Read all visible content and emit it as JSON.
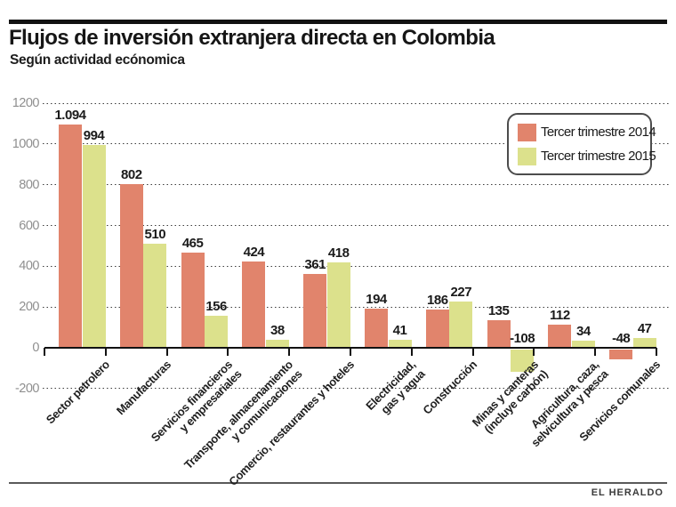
{
  "header": {
    "title": "Flujos de inversión extranjera directa en Colombia",
    "subtitle": "Según actividad ecónomica"
  },
  "footer": {
    "credit": "EL HERALDO"
  },
  "chart_data": {
    "type": "bar",
    "title": "Flujos de inversión extranjera directa en Colombia",
    "subtitle": "Según actividad ecónomica",
    "categories": [
      "Sector petrolero",
      "Manufacturas",
      "Servicios financieros\ny empresariales",
      "Transporte, almacenamiento\ny comunicaciones",
      "Comercio, restaurantes y hoteles",
      "Electricidad,\ngas y agua",
      "Construcción",
      "Minas y canteras\n(incluye carbón)",
      "Agricultura, caza,\nselvicultura y pesca",
      "Servicios comunales"
    ],
    "series": [
      {
        "name": "Tercer trimestre 2014",
        "color": "#e1846c",
        "values": [
          1094,
          802,
          465,
          424,
          361,
          194,
          186,
          135,
          112,
          -48
        ],
        "labels": [
          "1.094",
          "802",
          "465",
          "424",
          "361",
          "194",
          "186",
          "135",
          "112",
          "-48"
        ]
      },
      {
        "name": "Tercer trimestre 2015",
        "color": "#dce18c",
        "values": [
          994,
          510,
          156,
          38,
          418,
          41,
          227,
          -108,
          34,
          47
        ],
        "labels": [
          "994",
          "510",
          "156",
          "38",
          "418",
          "41",
          "227",
          "-108",
          "34",
          "47"
        ]
      }
    ],
    "ylim": [
      -200,
      1200
    ],
    "ytick_step": 200,
    "yticks": [
      1200,
      1000,
      800,
      600,
      400,
      200,
      0,
      -200
    ],
    "grid": "dotted-horizontal",
    "legend_position": "top-right",
    "grid_color": "#3d3d3d",
    "axis_color": "#121212",
    "ytick_color": "#8f8f8f"
  }
}
